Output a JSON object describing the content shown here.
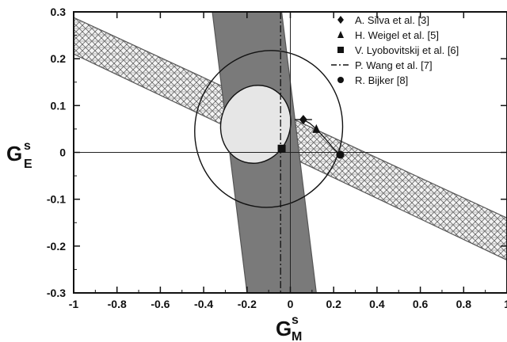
{
  "chart_data": {
    "type": "scatter",
    "xlim": [
      -1,
      1
    ],
    "ylim": [
      -0.3,
      0.3
    ],
    "x_ticks": [
      "-1",
      "-0.8",
      "-0.6",
      "-0.4",
      "-0.2",
      "0",
      "0.2",
      "0.4",
      "0.6",
      "0.8",
      "1"
    ],
    "y_ticks": [
      "0.3",
      "0.2",
      "0.1",
      "0",
      "-0.1",
      "-0.2",
      "-0.3"
    ],
    "xlabel": {
      "main": "G",
      "sup": "s",
      "sub": "M"
    },
    "ylabel": {
      "main": "G",
      "sup": "s",
      "sub": "E"
    },
    "grid": false,
    "legend_placement": "top-right",
    "legend": [
      {
        "marker": "diamond",
        "label": "A. Silva et al. [3]"
      },
      {
        "marker": "triangle",
        "label": "H. Weigel et al. [5]"
      },
      {
        "marker": "square",
        "label": "V. Lyobovitskij  et al. [6]"
      },
      {
        "marker": "dash-dot",
        "label": "P. Wang et al. [7]"
      },
      {
        "marker": "circle",
        "label": "R. Bijker [8]"
      }
    ],
    "points": [
      {
        "series": "A. Silva et al. [3]",
        "marker": "diamond",
        "x": 0.06,
        "y": 0.07,
        "xerr": 0.04
      },
      {
        "series": "H. Weigel et al. [5]",
        "marker": "triangle",
        "x": 0.12,
        "y": 0.05
      },
      {
        "series": "V. Lyobovitskij  et al. [6]",
        "marker": "square",
        "x": -0.04,
        "y": 0.008
      },
      {
        "series": "R. Bijker [8]",
        "marker": "circle",
        "x": 0.23,
        "y": -0.005
      }
    ],
    "wang_line": {
      "x": -0.045,
      "y_range": [
        -0.3,
        0.3
      ]
    },
    "bands": [
      {
        "name": "hatched-band",
        "fill": "crosshatch",
        "polygon": [
          [
            -1.0,
            0.288
          ],
          [
            -1.0,
            0.21
          ],
          [
            1.0,
            -0.23
          ],
          [
            1.0,
            -0.14
          ]
        ]
      },
      {
        "name": "dark-band",
        "fill": "#7a7a7a",
        "polygon": [
          [
            -0.36,
            0.3
          ],
          [
            -0.2,
            -0.3
          ],
          [
            0.12,
            -0.3
          ],
          [
            -0.04,
            0.3
          ]
        ]
      }
    ],
    "ellipses": [
      {
        "name": "outer-ellipse",
        "cx": -0.1,
        "cy": 0.05,
        "rx": 0.34,
        "ry": 0.07,
        "angle": 13.7,
        "fill": "none"
      },
      {
        "name": "inner-ellipse",
        "cx": -0.16,
        "cy": 0.06,
        "rx": 0.16,
        "ry": 0.035,
        "angle": 16.5,
        "fill": "#e6e6e6"
      }
    ],
    "silva_curve": [
      [
        0.06,
        0.07
      ],
      [
        0.09,
        0.062
      ],
      [
        0.12,
        0.05
      ],
      [
        0.16,
        0.03
      ],
      [
        0.2,
        0.008
      ],
      [
        0.23,
        -0.005
      ]
    ]
  }
}
